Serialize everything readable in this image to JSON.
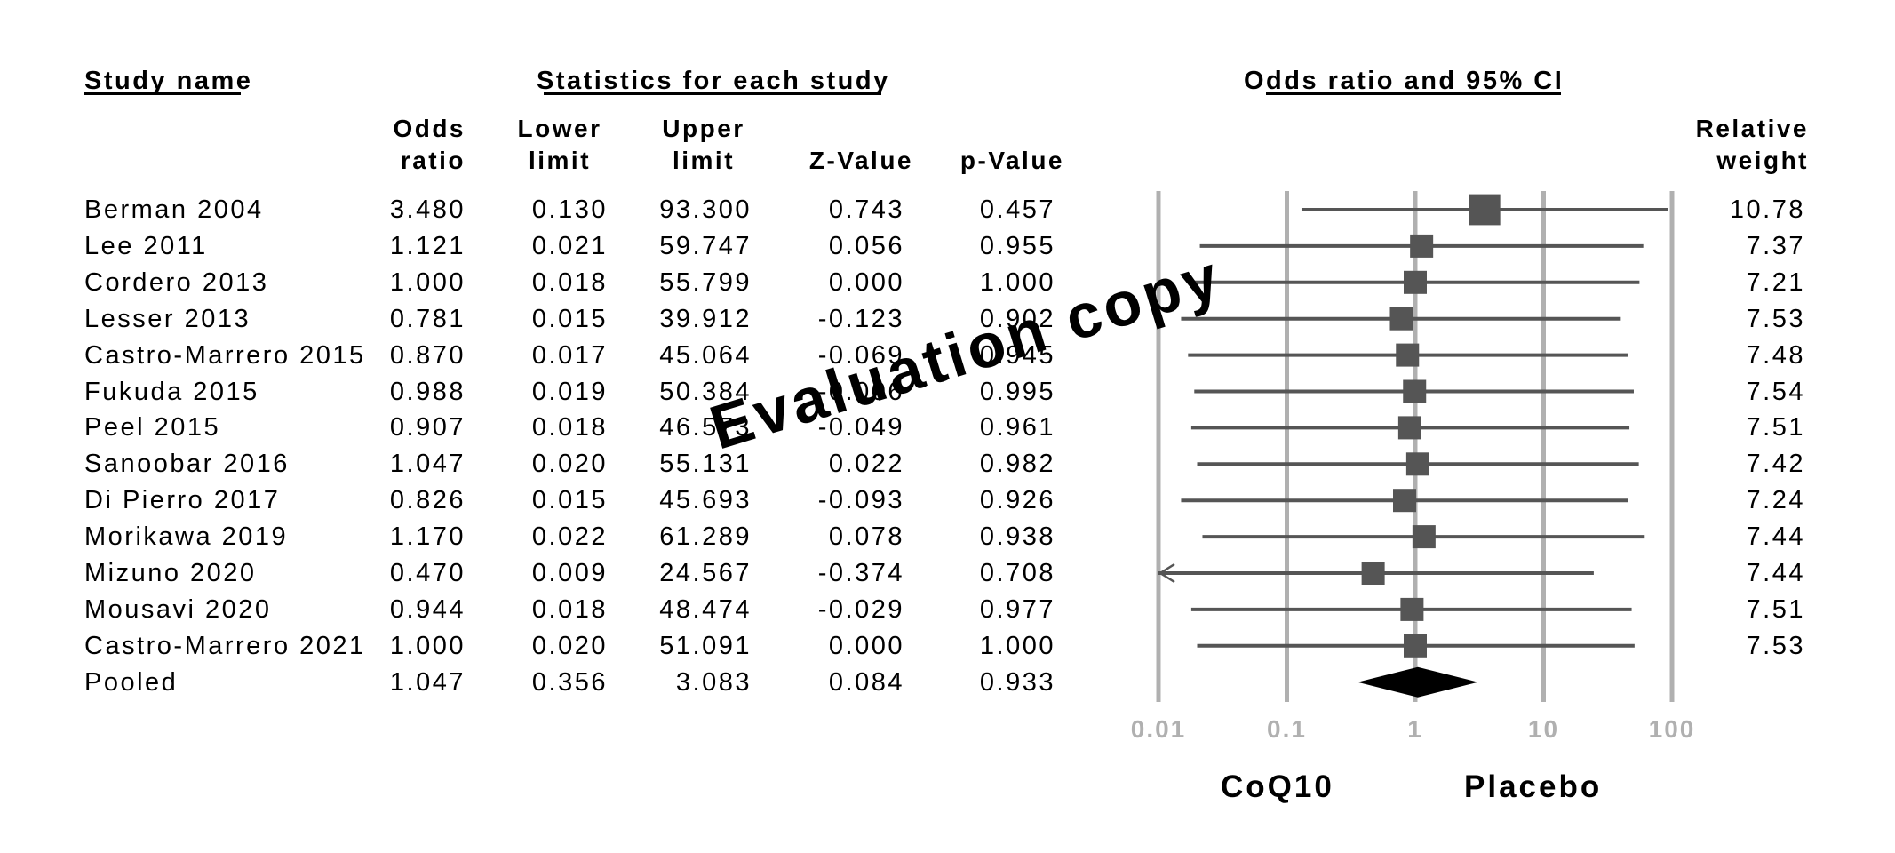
{
  "headers": {
    "study_name": "Study name",
    "statistics": "Statistics for each study",
    "or_ci": "Odds ratio and 95% CI",
    "col_or_1": "Odds",
    "col_or_2": "ratio",
    "col_lower_1": "Lower",
    "col_lower_2": "limit",
    "col_upper_1": "Upper",
    "col_upper_2": "limit",
    "col_z": "Z-Value",
    "col_p": "p-Value",
    "col_weight_1": "Relative",
    "col_weight_2": "weight"
  },
  "rows": [
    {
      "study": "Berman 2004",
      "or": "3.480",
      "lower": "0.130",
      "upper": "93.300",
      "z": "0.743",
      "p": "0.457",
      "weight": "10.78"
    },
    {
      "study": "Lee 2011",
      "or": "1.121",
      "lower": "0.021",
      "upper": "59.747",
      "z": "0.056",
      "p": "0.955",
      "weight": "7.37"
    },
    {
      "study": "Cordero 2013",
      "or": "1.000",
      "lower": "0.018",
      "upper": "55.799",
      "z": "0.000",
      "p": "1.000",
      "weight": "7.21"
    },
    {
      "study": "Lesser 2013",
      "or": "0.781",
      "lower": "0.015",
      "upper": "39.912",
      "z": "-0.123",
      "p": "0.902",
      "weight": "7.53"
    },
    {
      "study": "Castro-Marrero 2015",
      "or": "0.870",
      "lower": "0.017",
      "upper": "45.064",
      "z": "-0.069",
      "p": "0.945",
      "weight": "7.48"
    },
    {
      "study": "Fukuda 2015",
      "or": "0.988",
      "lower": "0.019",
      "upper": "50.384",
      "z": "-0.006",
      "p": "0.995",
      "weight": "7.54"
    },
    {
      "study": "Peel 2015",
      "or": "0.907",
      "lower": "0.018",
      "upper": "46.573",
      "z": "-0.049",
      "p": "0.961",
      "weight": "7.51"
    },
    {
      "study": "Sanoobar 2016",
      "or": "1.047",
      "lower": "0.020",
      "upper": "55.131",
      "z": "0.022",
      "p": "0.982",
      "weight": "7.42"
    },
    {
      "study": "Di Pierro 2017",
      "or": "0.826",
      "lower": "0.015",
      "upper": "45.693",
      "z": "-0.093",
      "p": "0.926",
      "weight": "7.24"
    },
    {
      "study": "Morikawa 2019",
      "or": "1.170",
      "lower": "0.022",
      "upper": "61.289",
      "z": "0.078",
      "p": "0.938",
      "weight": "7.44"
    },
    {
      "study": "Mizuno 2020",
      "or": "0.470",
      "lower": "0.009",
      "upper": "24.567",
      "z": "-0.374",
      "p": "0.708",
      "weight": "7.44"
    },
    {
      "study": "Mousavi 2020",
      "or": "0.944",
      "lower": "0.018",
      "upper": "48.474",
      "z": "-0.029",
      "p": "0.977",
      "weight": "7.51"
    },
    {
      "study": "Castro-Marrero 2021",
      "or": "1.000",
      "lower": "0.020",
      "upper": "51.091",
      "z": "0.000",
      "p": "1.000",
      "weight": "7.53"
    }
  ],
  "pooled": {
    "study": "Pooled",
    "or": "1.047",
    "lower": "0.356",
    "upper": "3.083",
    "z": "0.084",
    "p": "0.933"
  },
  "axis_labels": {
    "left": "CoQ10",
    "right": "Placebo"
  },
  "watermark": "Evaluation copy",
  "colors": {
    "marker": "#555555",
    "gridline": "#b0b0b0",
    "tick_label": "#b0b0b0",
    "diamond": "#000000"
  },
  "chart_data": {
    "type": "forest",
    "title": "Odds ratio and 95% CI",
    "x_scale": "log",
    "xlim": [
      0.01,
      100
    ],
    "x_ticks": [
      "0.01",
      "0.1",
      "1",
      "10",
      "100"
    ],
    "x_tick_values": [
      0.01,
      0.1,
      1,
      10,
      100
    ],
    "reference_line": 1,
    "left_label": "CoQ10",
    "right_label": "Placebo",
    "studies": [
      {
        "name": "Berman 2004",
        "or": 3.48,
        "lower": 0.13,
        "upper": 93.3,
        "weight": 10.78
      },
      {
        "name": "Lee 2011",
        "or": 1.121,
        "lower": 0.021,
        "upper": 59.747,
        "weight": 7.37
      },
      {
        "name": "Cordero 2013",
        "or": 1.0,
        "lower": 0.018,
        "upper": 55.799,
        "weight": 7.21
      },
      {
        "name": "Lesser 2013",
        "or": 0.781,
        "lower": 0.015,
        "upper": 39.912,
        "weight": 7.53
      },
      {
        "name": "Castro-Marrero 2015",
        "or": 0.87,
        "lower": 0.017,
        "upper": 45.064,
        "weight": 7.48
      },
      {
        "name": "Fukuda 2015",
        "or": 0.988,
        "lower": 0.019,
        "upper": 50.384,
        "weight": 7.54
      },
      {
        "name": "Peel 2015",
        "or": 0.907,
        "lower": 0.018,
        "upper": 46.573,
        "weight": 7.51
      },
      {
        "name": "Sanoobar 2016",
        "or": 1.047,
        "lower": 0.02,
        "upper": 55.131,
        "weight": 7.42
      },
      {
        "name": "Di Pierro 2017",
        "or": 0.826,
        "lower": 0.015,
        "upper": 45.693,
        "weight": 7.24
      },
      {
        "name": "Morikawa 2019",
        "or": 1.17,
        "lower": 0.022,
        "upper": 61.289,
        "weight": 7.44
      },
      {
        "name": "Mizuno 2020",
        "or": 0.47,
        "lower": 0.009,
        "upper": 24.567,
        "weight": 7.44
      },
      {
        "name": "Mousavi 2020",
        "or": 0.944,
        "lower": 0.018,
        "upper": 48.474,
        "weight": 7.51
      },
      {
        "name": "Castro-Marrero 2021",
        "or": 1.0,
        "lower": 0.02,
        "upper": 51.091,
        "weight": 7.53
      }
    ],
    "pooled": {
      "name": "Pooled",
      "or": 1.047,
      "lower": 0.356,
      "upper": 3.083
    }
  }
}
